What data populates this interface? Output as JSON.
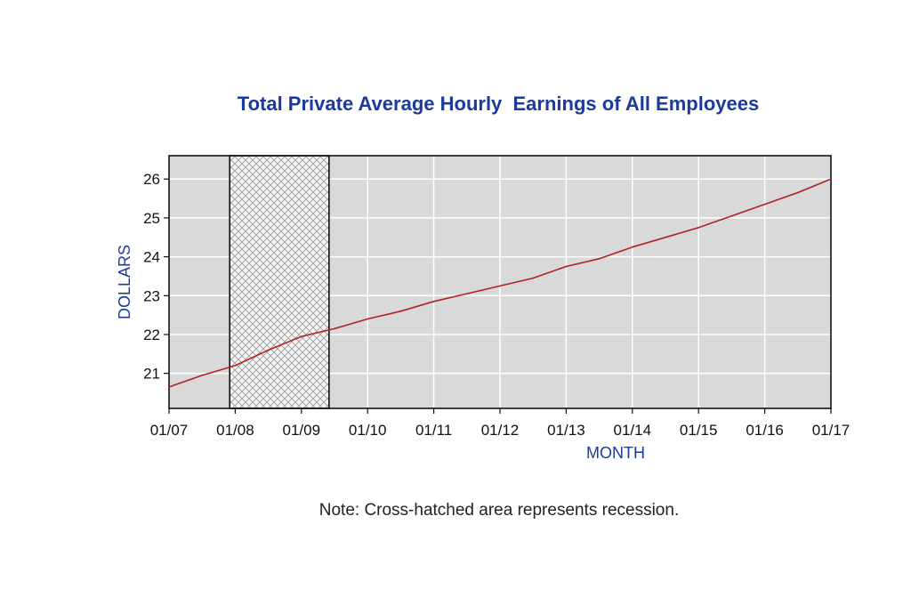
{
  "chart_data": {
    "type": "line",
    "title": "Total Private Average Hourly  Earnings of All Employees",
    "xlabel": "MONTH",
    "ylabel": "DOLLARS",
    "x_tick_labels": [
      "01/07",
      "01/08",
      "01/09",
      "01/10",
      "01/11",
      "01/12",
      "01/13",
      "01/14",
      "01/15",
      "01/16",
      "01/17"
    ],
    "y_ticks": [
      21,
      22,
      23,
      24,
      25,
      26
    ],
    "xlim": [
      "2007-01",
      "2017-01"
    ],
    "ylim": [
      20.1,
      26.6
    ],
    "grid": true,
    "recession": {
      "start": "2007-12",
      "end": "2009-06",
      "fill": "cross-hatched"
    },
    "series": [
      {
        "color": "#b22222",
        "x": [
          "2007-01",
          "2007-07",
          "2008-01",
          "2008-07",
          "2009-01",
          "2009-07",
          "2010-01",
          "2010-07",
          "2011-01",
          "2011-07",
          "2012-01",
          "2012-07",
          "2013-01",
          "2013-07",
          "2014-01",
          "2014-07",
          "2015-01",
          "2015-07",
          "2016-01",
          "2016-07",
          "2017-01"
        ],
        "values": [
          20.65,
          20.95,
          21.2,
          21.6,
          21.95,
          22.15,
          22.4,
          22.6,
          22.85,
          23.05,
          23.25,
          23.45,
          23.75,
          23.95,
          24.25,
          24.5,
          24.75,
          25.05,
          25.35,
          25.65,
          26.0
        ]
      }
    ],
    "note": "Note: Cross-hatched area represents recession."
  },
  "colors": {
    "plot_background": "#d9d9d9",
    "gridlines": "#ffffff",
    "title": "#1a3a9c",
    "line": "#b22222"
  }
}
